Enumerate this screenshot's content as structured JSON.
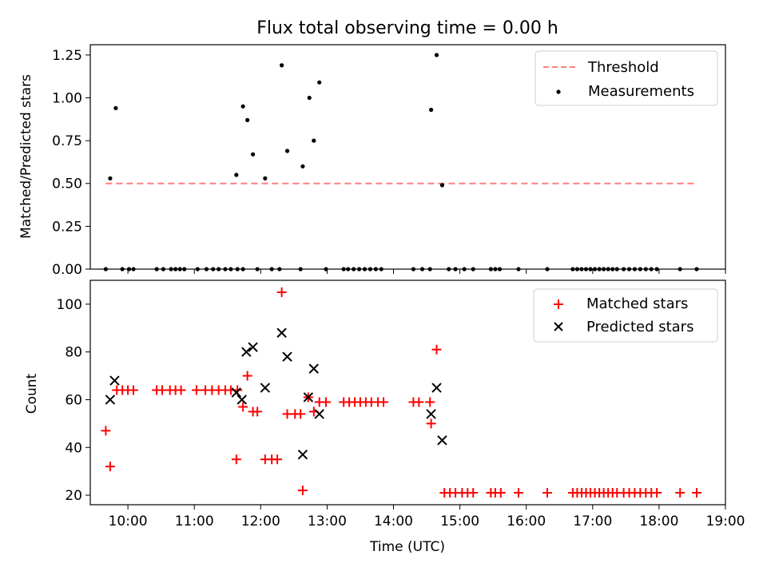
{
  "title": "Flux total observing time = 0.00 h",
  "chart_data": [
    {
      "type": "scatter",
      "ylabel": "Matched/Predicted stars",
      "ylim": [
        0,
        1.31
      ],
      "yticks": [
        0.0,
        0.25,
        0.5,
        0.75,
        1.0,
        1.25
      ],
      "ytick_labels": [
        "0.00",
        "0.25",
        "0.50",
        "0.75",
        "1.00",
        "1.25"
      ],
      "xlim": [
        "09:26",
        "19:00"
      ],
      "legend_position": "top-right",
      "threshold": {
        "name": "Threshold",
        "y": 0.5,
        "x_start": "09:40",
        "x_end": "18:35",
        "color": "#ff7f7f"
      },
      "series": [
        {
          "name": "Measurements",
          "color": "#000000",
          "points": [
            [
              "09:40",
              0.0
            ],
            [
              "09:44",
              0.53
            ],
            [
              "09:49",
              0.94
            ],
            [
              "09:55",
              0.0
            ],
            [
              "10:01",
              0.0
            ],
            [
              "10:05",
              0.0
            ],
            [
              "10:26",
              0.0
            ],
            [
              "10:32",
              0.0
            ],
            [
              "10:39",
              0.0
            ],
            [
              "10:43",
              0.0
            ],
            [
              "10:47",
              0.0
            ],
            [
              "10:51",
              0.0
            ],
            [
              "11:03",
              0.0
            ],
            [
              "11:11",
              0.0
            ],
            [
              "11:17",
              0.0
            ],
            [
              "11:22",
              0.0
            ],
            [
              "11:28",
              0.0
            ],
            [
              "11:33",
              0.0
            ],
            [
              "11:39",
              0.0
            ],
            [
              "11:44",
              0.0
            ],
            [
              "11:38",
              0.55
            ],
            [
              "11:44",
              0.95
            ],
            [
              "11:48",
              0.87
            ],
            [
              "11:53",
              0.67
            ],
            [
              "11:57",
              0.0
            ],
            [
              "12:04",
              0.53
            ],
            [
              "12:10",
              0.0
            ],
            [
              "12:17",
              0.0
            ],
            [
              "12:19",
              1.19
            ],
            [
              "12:24",
              0.69
            ],
            [
              "12:36",
              0.0
            ],
            [
              "12:38",
              0.6
            ],
            [
              "12:44",
              1.0
            ],
            [
              "12:48",
              0.75
            ],
            [
              "12:53",
              1.09
            ],
            [
              "12:59",
              0.0
            ],
            [
              "13:15",
              0.0
            ],
            [
              "13:19",
              0.0
            ],
            [
              "13:24",
              0.0
            ],
            [
              "13:29",
              0.0
            ],
            [
              "13:34",
              0.0
            ],
            [
              "13:39",
              0.0
            ],
            [
              "13:44",
              0.0
            ],
            [
              "13:49",
              0.0
            ],
            [
              "14:18",
              0.0
            ],
            [
              "14:26",
              0.0
            ],
            [
              "14:33",
              0.0
            ],
            [
              "14:34",
              0.93
            ],
            [
              "14:39",
              1.25
            ],
            [
              "14:44",
              0.49
            ],
            [
              "14:50",
              0.0
            ],
            [
              "14:56",
              0.0
            ],
            [
              "15:04",
              0.0
            ],
            [
              "15:12",
              0.0
            ],
            [
              "15:28",
              0.0
            ],
            [
              "15:32",
              0.0
            ],
            [
              "15:36",
              0.0
            ],
            [
              "15:53",
              0.0
            ],
            [
              "16:19",
              0.0
            ],
            [
              "16:42",
              0.0
            ],
            [
              "16:46",
              0.0
            ],
            [
              "16:50",
              0.0
            ],
            [
              "16:54",
              0.0
            ],
            [
              "16:58",
              0.0
            ],
            [
              "17:02",
              0.0
            ],
            [
              "17:06",
              0.0
            ],
            [
              "17:10",
              0.0
            ],
            [
              "17:14",
              0.0
            ],
            [
              "17:18",
              0.0
            ],
            [
              "17:22",
              0.0
            ],
            [
              "17:28",
              0.0
            ],
            [
              "17:33",
              0.0
            ],
            [
              "17:38",
              0.0
            ],
            [
              "17:43",
              0.0
            ],
            [
              "17:48",
              0.0
            ],
            [
              "17:53",
              0.0
            ],
            [
              "17:58",
              0.0
            ],
            [
              "18:19",
              0.0
            ],
            [
              "18:34",
              0.0
            ]
          ]
        }
      ]
    },
    {
      "type": "scatter",
      "xlabel": "Time (UTC)",
      "ylabel": "Count",
      "ylim": [
        16,
        110
      ],
      "yticks": [
        20,
        40,
        60,
        80,
        100
      ],
      "ytick_labels": [
        "20",
        "40",
        "60",
        "80",
        "100"
      ],
      "xlim": [
        "09:26",
        "19:00"
      ],
      "xticks": [
        "10:00",
        "11:00",
        "12:00",
        "13:00",
        "14:00",
        "15:00",
        "16:00",
        "17:00",
        "18:00",
        "19:00"
      ],
      "legend_position": "top-right",
      "series": [
        {
          "name": "Matched stars",
          "marker": "plus",
          "color": "#ff0000",
          "points": [
            [
              "09:40",
              47
            ],
            [
              "09:44",
              32
            ],
            [
              "09:50",
              64
            ],
            [
              "09:55",
              64
            ],
            [
              "10:00",
              64
            ],
            [
              "10:05",
              64
            ],
            [
              "10:26",
              64
            ],
            [
              "10:31",
              64
            ],
            [
              "10:38",
              64
            ],
            [
              "10:43",
              64
            ],
            [
              "10:48",
              64
            ],
            [
              "11:02",
              64
            ],
            [
              "11:10",
              64
            ],
            [
              "11:16",
              64
            ],
            [
              "11:22",
              64
            ],
            [
              "11:28",
              64
            ],
            [
              "11:33",
              64
            ],
            [
              "11:39",
              64
            ],
            [
              "11:38",
              35
            ],
            [
              "11:44",
              57
            ],
            [
              "11:48",
              70
            ],
            [
              "11:53",
              55
            ],
            [
              "11:57",
              55
            ],
            [
              "12:04",
              35
            ],
            [
              "12:10",
              35
            ],
            [
              "12:15",
              35
            ],
            [
              "12:19",
              105
            ],
            [
              "12:24",
              54
            ],
            [
              "12:31",
              54
            ],
            [
              "12:36",
              54
            ],
            [
              "12:38",
              22
            ],
            [
              "12:43",
              61
            ],
            [
              "12:48",
              55
            ],
            [
              "12:53",
              59
            ],
            [
              "12:59",
              59
            ],
            [
              "13:15",
              59
            ],
            [
              "13:20",
              59
            ],
            [
              "13:25",
              59
            ],
            [
              "13:30",
              59
            ],
            [
              "13:35",
              59
            ],
            [
              "13:40",
              59
            ],
            [
              "13:46",
              59
            ],
            [
              "13:51",
              59
            ],
            [
              "14:18",
              59
            ],
            [
              "14:23",
              59
            ],
            [
              "14:33",
              59
            ],
            [
              "14:34",
              50
            ],
            [
              "14:39",
              81
            ],
            [
              "14:46",
              21
            ],
            [
              "14:51",
              21
            ],
            [
              "14:56",
              21
            ],
            [
              "15:02",
              21
            ],
            [
              "15:07",
              21
            ],
            [
              "15:12",
              21
            ],
            [
              "15:28",
              21
            ],
            [
              "15:32",
              21
            ],
            [
              "15:37",
              21
            ],
            [
              "15:53",
              21
            ],
            [
              "16:19",
              21
            ],
            [
              "16:42",
              21
            ],
            [
              "16:46",
              21
            ],
            [
              "16:50",
              21
            ],
            [
              "16:54",
              21
            ],
            [
              "16:58",
              21
            ],
            [
              "17:02",
              21
            ],
            [
              "17:06",
              21
            ],
            [
              "17:10",
              21
            ],
            [
              "17:14",
              21
            ],
            [
              "17:18",
              21
            ],
            [
              "17:22",
              21
            ],
            [
              "17:28",
              21
            ],
            [
              "17:33",
              21
            ],
            [
              "17:38",
              21
            ],
            [
              "17:43",
              21
            ],
            [
              "17:48",
              21
            ],
            [
              "17:53",
              21
            ],
            [
              "17:58",
              21
            ],
            [
              "18:19",
              21
            ],
            [
              "18:34",
              21
            ]
          ]
        },
        {
          "name": "Predicted stars",
          "marker": "x",
          "color": "#000000",
          "points": [
            [
              "09:44",
              60
            ],
            [
              "09:48",
              68
            ],
            [
              "11:38",
              63
            ],
            [
              "11:43",
              60
            ],
            [
              "11:47",
              80
            ],
            [
              "11:53",
              82
            ],
            [
              "12:04",
              65
            ],
            [
              "12:19",
              88
            ],
            [
              "12:24",
              78
            ],
            [
              "12:38",
              37
            ],
            [
              "12:43",
              61
            ],
            [
              "12:48",
              73
            ],
            [
              "12:53",
              54
            ],
            [
              "14:34",
              54
            ],
            [
              "14:39",
              65
            ],
            [
              "14:44",
              43
            ]
          ]
        }
      ]
    }
  ]
}
